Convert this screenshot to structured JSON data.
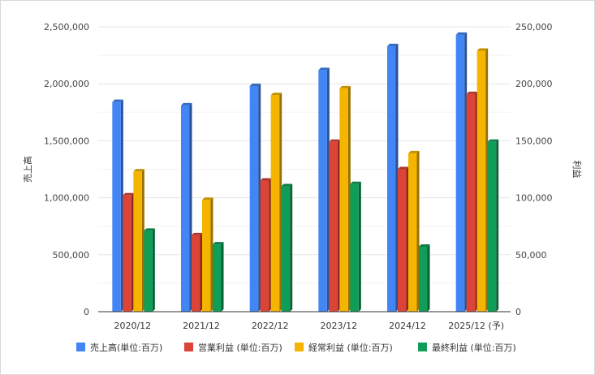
{
  "chart_data": {
    "type": "bar",
    "categories": [
      "2020/12",
      "2021/12",
      "2022/12",
      "2023/12",
      "2024/12",
      "2025/12 (予)"
    ],
    "y_left": {
      "label": "売上高",
      "range": [
        0,
        2500000
      ],
      "ticks": [
        0,
        500000,
        1000000,
        1500000,
        2000000,
        2500000
      ],
      "tick_labels": [
        "0",
        "500,000",
        "1,000,000",
        "1,500,000",
        "2,000,000",
        "2,500,000"
      ]
    },
    "y_right": {
      "label": "利益",
      "range": [
        0,
        250000
      ],
      "ticks": [
        0,
        50000,
        100000,
        150000,
        200000,
        250000
      ],
      "tick_labels": [
        "0",
        "50,000",
        "100,000",
        "150,000",
        "200,000",
        "250,000"
      ]
    },
    "series": [
      {
        "name": "売上高(単位:百万)",
        "axis": "left",
        "color": "#4285f4",
        "values": [
          1840000,
          1810000,
          1980000,
          2120000,
          2330000,
          2430000
        ]
      },
      {
        "name": "営業利益 (単位:百万)",
        "axis": "right",
        "color": "#db4437",
        "values": [
          102000,
          67000,
          115000,
          149000,
          125000,
          191000
        ]
      },
      {
        "name": "経常利益 (単位:百万)",
        "axis": "right",
        "color": "#f4b400",
        "values": [
          123000,
          98000,
          190000,
          196000,
          139000,
          229000
        ]
      },
      {
        "name": "最終利益 (単位:百万)",
        "axis": "right",
        "color": "#0f9d58",
        "values": [
          71000,
          59000,
          110000,
          112000,
          57000,
          149000
        ]
      }
    ],
    "grid": true,
    "legend_position": "bottom"
  }
}
